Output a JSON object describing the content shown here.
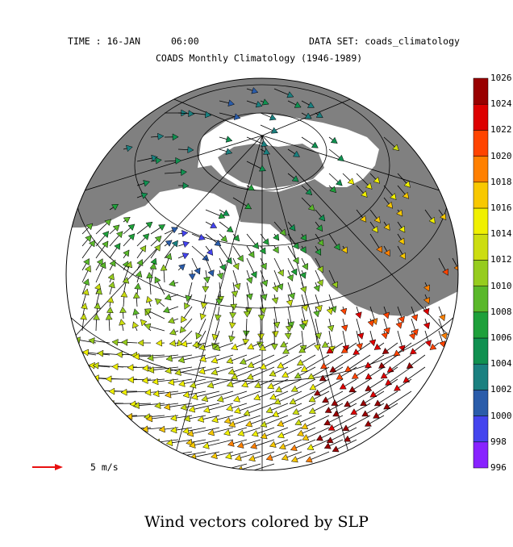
{
  "header": {
    "time": "TIME : 16-JAN",
    "clock": "06:00",
    "dataset": "DATA SET: coads_climatology",
    "subtitle": "COADS Monthly Climatology (1946-1989)"
  },
  "caption": "Wind vectors colored by SLP",
  "reference": {
    "label": "5 m/s",
    "color": "#e81010"
  },
  "colorbar": {
    "levels": [
      "996",
      "998",
      "1000",
      "1002",
      "1004",
      "1006",
      "1008",
      "1010",
      "1012",
      "1014",
      "1016",
      "1018",
      "1020",
      "1022",
      "1024",
      "1026"
    ],
    "colors": [
      "#cc00ff",
      "#8822ff",
      "#4444ee",
      "#2a5caa",
      "#1a8080",
      "#109050",
      "#1ea03a",
      "#5ab82a",
      "#96cc1e",
      "#ccdd10",
      "#f0f000",
      "#f8c800",
      "#ff8000",
      "#ff4400",
      "#dd0000",
      "#990000"
    ]
  },
  "map": {
    "land_color": "#808080",
    "ocean_color": "#ffffff",
    "grid_color": "#000000"
  }
}
